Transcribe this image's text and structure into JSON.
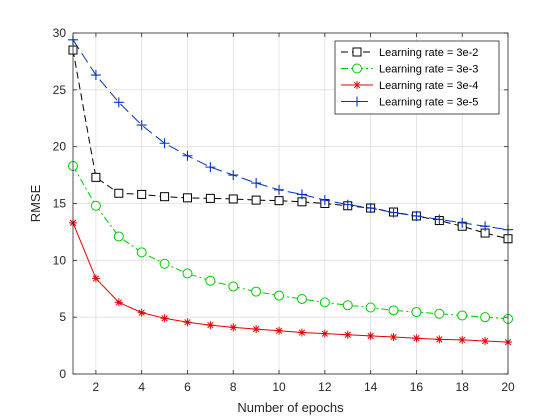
{
  "chart_data": {
    "type": "line",
    "xlabel": "Number of epochs",
    "ylabel": "RMSE",
    "xlim": [
      1,
      20
    ],
    "ylim": [
      0,
      30
    ],
    "xticks": [
      2,
      4,
      6,
      8,
      10,
      12,
      14,
      16,
      18,
      20
    ],
    "yticks": [
      0,
      5,
      10,
      15,
      20,
      25,
      30
    ],
    "xtick_labels": [
      "2",
      "4",
      "6",
      "8",
      "10",
      "12",
      "14",
      "16",
      "18",
      "20"
    ],
    "ytick_labels": [
      "0",
      "5",
      "10",
      "15",
      "20",
      "25",
      "30"
    ],
    "grid": true,
    "legend_position": "top-right",
    "x": [
      1,
      2,
      3,
      4,
      5,
      6,
      7,
      8,
      9,
      10,
      11,
      12,
      13,
      14,
      15,
      16,
      17,
      18,
      19,
      20
    ],
    "series": [
      {
        "name": "Learning rate = 3e-2",
        "color": "#000000",
        "line_style": "dashed",
        "marker": "square",
        "values": [
          28.5,
          17.3,
          15.9,
          15.8,
          15.6,
          15.5,
          15.45,
          15.4,
          15.3,
          15.25,
          15.15,
          15.0,
          14.8,
          14.6,
          14.25,
          13.9,
          13.5,
          13.0,
          12.4,
          11.9
        ]
      },
      {
        "name": "Learning rate = 3e-3",
        "color": "#00cc00",
        "line_style": "dashdot",
        "marker": "circle",
        "values": [
          18.3,
          14.8,
          12.1,
          10.7,
          9.7,
          8.85,
          8.2,
          7.7,
          7.25,
          6.9,
          6.6,
          6.3,
          6.05,
          5.85,
          5.6,
          5.45,
          5.3,
          5.15,
          5.0,
          4.85
        ]
      },
      {
        "name": "Learning rate = 3e-4",
        "color": "#e60000",
        "line_style": "solid",
        "marker": "asterisk",
        "values": [
          13.3,
          8.4,
          6.3,
          5.4,
          4.9,
          4.55,
          4.3,
          4.1,
          3.95,
          3.8,
          3.65,
          3.55,
          3.45,
          3.35,
          3.25,
          3.15,
          3.05,
          3.0,
          2.9,
          2.8
        ]
      },
      {
        "name": "Learning rate = 3e-5",
        "color": "#0033cc",
        "line_style": "longdash",
        "marker": "plus",
        "values": [
          29.4,
          26.3,
          23.9,
          21.9,
          20.3,
          19.2,
          18.2,
          17.5,
          16.8,
          16.2,
          15.8,
          15.3,
          14.9,
          14.6,
          14.2,
          13.9,
          13.6,
          13.3,
          13.0,
          12.7
        ]
      }
    ]
  }
}
